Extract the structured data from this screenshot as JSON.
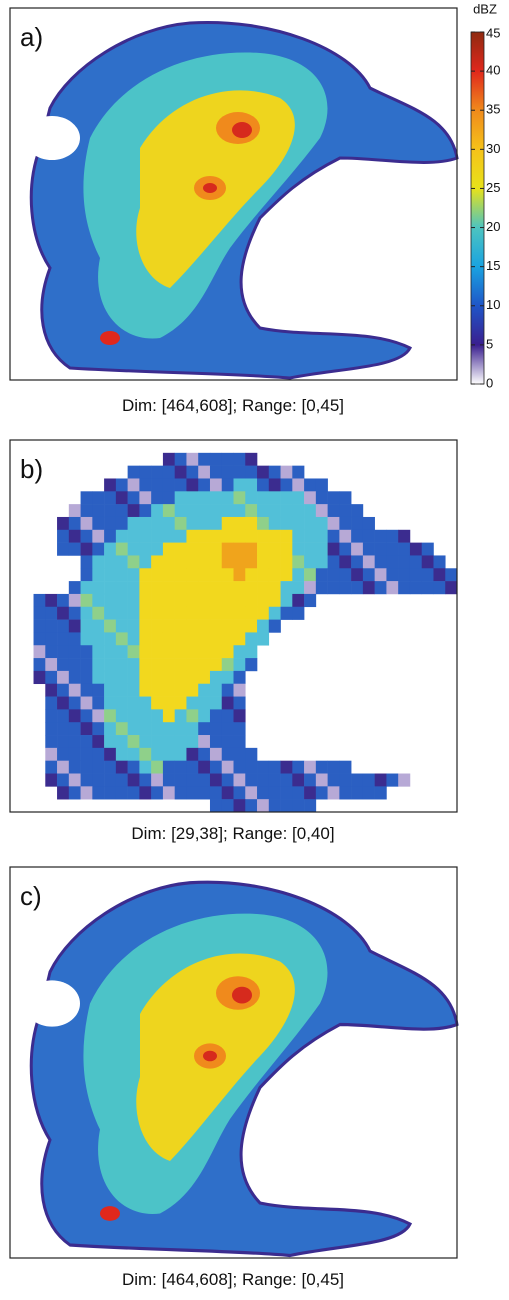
{
  "colorbar": {
    "label": "dBZ",
    "lim": [
      0,
      45
    ],
    "ticks": [
      0,
      5,
      10,
      15,
      20,
      25,
      30,
      35,
      40,
      45
    ],
    "colors": [
      "#ffffff",
      "#3a1f8f",
      "#1f55c8",
      "#1aa3e0",
      "#4dc4c0",
      "#e8e21a",
      "#f5c21a",
      "#f08a1c",
      "#e0281c",
      "#8f2a10"
    ]
  },
  "panels": [
    {
      "label": "a)",
      "caption": "Dim: [464,608]; Range: [0,45]"
    },
    {
      "label": "b)",
      "caption": "Dim: [29,38]; Range: [0,40]"
    },
    {
      "label": "c)",
      "caption": "Dim: [464,608]; Range: [0,45]"
    }
  ]
}
